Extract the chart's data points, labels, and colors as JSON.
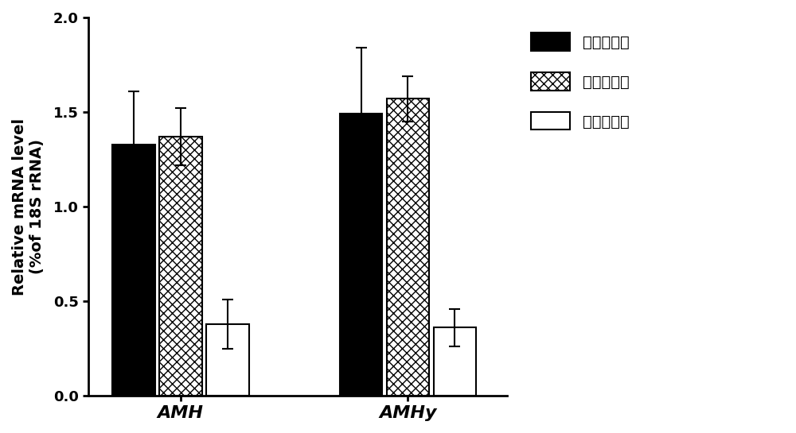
{
  "groups": [
    "AMH",
    "AMHy"
  ],
  "group_positions": [
    1.0,
    2.6
  ],
  "bar_width": 0.3,
  "series": [
    {
      "label": "对照组雄鱼",
      "values": [
        1.33,
        1.49
      ],
      "errors": [
        0.28,
        0.35
      ],
      "facecolor": "#000000",
      "edgecolor": "#000000",
      "hatch": ""
    },
    {
      "label": "阴性对照组",
      "values": [
        1.37,
        1.57
      ],
      "errors": [
        0.15,
        0.12
      ],
      "facecolor": "#ffffff",
      "edgecolor": "#000000",
      "hatch": "xxx"
    },
    {
      "label": "实验组雄鱼",
      "values": [
        0.38,
        0.36
      ],
      "errors": [
        0.13,
        0.1
      ],
      "facecolor": "#ffffff",
      "edgecolor": "#000000",
      "hatch": ""
    }
  ],
  "ylabel": "Relative mRNA level\n(%of 18S rRNA)",
  "ylim": [
    0.0,
    2.0
  ],
  "yticks": [
    0.0,
    0.5,
    1.0,
    1.5,
    2.0
  ],
  "ytick_labels": [
    "0.0",
    "0.5",
    "1.0",
    "1.5",
    "2.0"
  ],
  "background_color": "#ffffff",
  "figsize": [
    10.0,
    5.45
  ],
  "dpi": 100,
  "legend_fontsize": 14,
  "axis_fontsize": 14,
  "tick_fontsize": 13,
  "bar_linewidth": 1.5,
  "error_capsize": 5,
  "error_linewidth": 1.5,
  "error_color": "#000000"
}
